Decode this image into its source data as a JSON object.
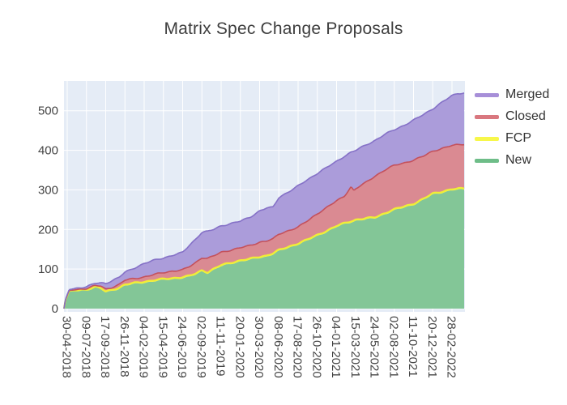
{
  "title": "Matrix Spec Change Proposals",
  "colors": {
    "plot_background": "#e5ecf6",
    "grid": "#ffffff",
    "page_background": "#ffffff",
    "title_text": "#3d3d3d",
    "tick_text": "#444444",
    "legend_text": "#333333"
  },
  "legend": [
    {
      "label": "Merged",
      "color": "#a78fd8"
    },
    {
      "label": "Closed",
      "color": "#d9777f"
    },
    {
      "label": "FCP",
      "color": "#f7f74a"
    },
    {
      "label": "New",
      "color": "#6ebd88"
    }
  ],
  "chart_data": {
    "type": "area",
    "stacked": true,
    "title": "Matrix Spec Change Proposals",
    "xlabel": "",
    "ylabel": "",
    "grid": true,
    "legend_position": "right-top",
    "stack_order_bottom_to_top": [
      "New",
      "FCP",
      "Closed",
      "Merged"
    ],
    "series_fill_colors": {
      "New": "#83c697",
      "FCP": "#f7f55e",
      "Closed": "#da8a92",
      "Merged": "#ab9cda"
    },
    "series_line_colors": {
      "New": "#f0ee35",
      "FCP": "#f0ee35",
      "Closed": "#c4515c",
      "Merged": "#8571c7"
    },
    "y_ticks": [
      0,
      100,
      200,
      300,
      400,
      500
    ],
    "y_range": [
      -8,
      575
    ],
    "x_tick_labels": [
      "30-04-2018",
      "09-07-2018",
      "17-09-2018",
      "26-11-2018",
      "04-02-2019",
      "15-04-2019",
      "24-06-2019",
      "02-09-2019",
      "11-11-2019",
      "20-01-2020",
      "30-03-2020",
      "08-06-2020",
      "17-08-2020",
      "26-10-2020",
      "04-01-2021",
      "15-03-2021",
      "24-05-2021",
      "02-08-2021",
      "11-10-2021",
      "20-12-2021",
      "28-02-2022"
    ],
    "samples_note": "i is position in x-tick-index units (one unit = 70 days); values are per-series counts, stacked bottom-to-top New, FCP, Closed, Merged",
    "samples": {
      "i": [
        -0.17,
        -0.1,
        0.1,
        0.5,
        1.0,
        1.45,
        1.75,
        2.0,
        2.35,
        2.7,
        3.0,
        3.5,
        4.0,
        4.5,
        5.0,
        5.5,
        6.0,
        6.35,
        6.7,
        7.0,
        7.3,
        7.6,
        8.0,
        8.5,
        9.0,
        9.5,
        10.0,
        10.35,
        10.7,
        11.0,
        11.5,
        12.0,
        12.5,
        13.0,
        13.5,
        14.0,
        14.4,
        14.75,
        14.9,
        15.0,
        15.5,
        16.0,
        16.5,
        17.0,
        17.5,
        18.0,
        18.5,
        19.0,
        19.5,
        20.0,
        20.3,
        20.65
      ],
      "New": [
        0,
        20,
        44,
        45,
        46,
        53,
        49,
        40,
        45,
        50,
        58,
        62,
        65,
        69,
        72,
        74,
        77,
        80,
        86,
        94,
        89,
        97,
        107,
        113,
        119,
        123,
        128,
        131,
        137,
        145,
        153,
        162,
        172,
        183,
        194,
        206,
        213,
        218,
        220,
        222,
        225,
        228,
        238,
        248,
        255,
        262,
        274,
        288,
        293,
        299,
        300,
        301
      ],
      "FCP": [
        0,
        0,
        1,
        1,
        2,
        2,
        3,
        3,
        3,
        3,
        3,
        3,
        3,
        3,
        3,
        3,
        3,
        3,
        3,
        3,
        3,
        3,
        3,
        3,
        3,
        3,
        3,
        3,
        3,
        3,
        3,
        3,
        3,
        3,
        3,
        3,
        3,
        3,
        3,
        3,
        3,
        3,
        3,
        3,
        3,
        3,
        3,
        3,
        3,
        3,
        3,
        3
      ],
      "Closed": [
        0,
        1,
        1,
        2,
        3,
        3,
        5,
        6,
        6,
        8,
        11,
        11,
        12,
        14,
        16,
        18,
        18,
        23,
        28,
        32,
        35,
        33,
        32,
        32,
        32,
        33,
        37,
        37,
        36,
        40,
        41,
        41,
        47,
        54,
        59,
        63,
        68,
        87,
        75,
        78,
        90,
        104,
        109,
        111,
        110,
        110,
        108,
        107,
        109,
        110,
        111,
        112
      ],
      "Merged": [
        0,
        1,
        2,
        4,
        4,
        6,
        8,
        15,
        17,
        18,
        20,
        27,
        34,
        36,
        37,
        40,
        44,
        54,
        60,
        64,
        68,
        67,
        67,
        67,
        67,
        72,
        79,
        83,
        80,
        93,
        98,
        104,
        104,
        102,
        101,
        100,
        101,
        87,
        100,
        97,
        95,
        90,
        90,
        90,
        95,
        101,
        105,
        107,
        117,
        126,
        130,
        129
      ]
    }
  }
}
